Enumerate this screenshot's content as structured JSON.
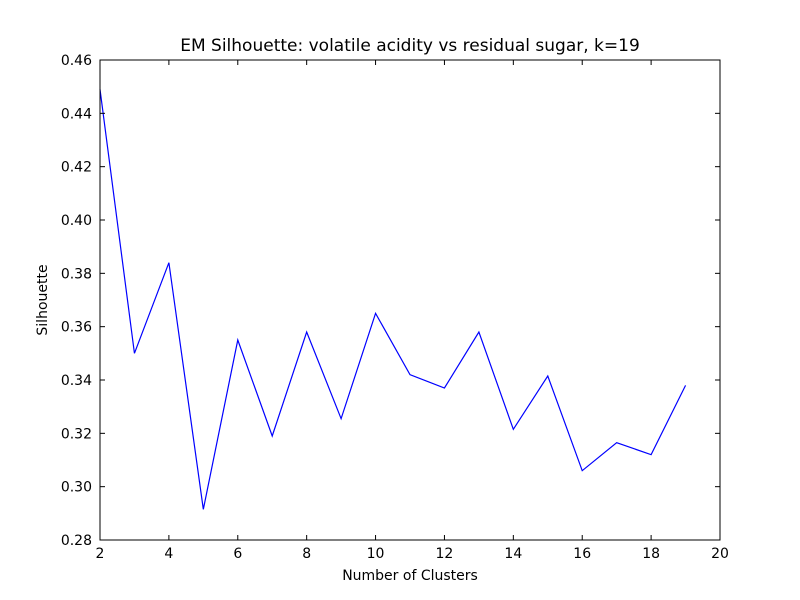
{
  "chart_data": {
    "type": "line",
    "title": "EM Silhouette: volatile acidity vs residual sugar, k=19",
    "xlabel": "Number of Clusters",
    "ylabel": "Silhouette",
    "xlim": [
      2,
      20
    ],
    "ylim": [
      0.28,
      0.46
    ],
    "xticks": [
      2,
      4,
      6,
      8,
      10,
      12,
      14,
      16,
      18,
      20
    ],
    "xtick_labels": [
      "2",
      "4",
      "6",
      "8",
      "10",
      "12",
      "14",
      "16",
      "18",
      "20"
    ],
    "yticks": [
      0.28,
      0.3,
      0.32,
      0.34,
      0.36,
      0.38,
      0.4,
      0.42,
      0.44,
      0.46
    ],
    "ytick_labels": [
      "0.28",
      "0.30",
      "0.32",
      "0.34",
      "0.36",
      "0.38",
      "0.40",
      "0.42",
      "0.44",
      "0.46"
    ],
    "grid": false,
    "series": [
      {
        "color": "#0000ff",
        "x": [
          2,
          3,
          4,
          5,
          6,
          7,
          8,
          9,
          10,
          11,
          12,
          13,
          14,
          15,
          16,
          17,
          18,
          19
        ],
        "y": [
          0.449,
          0.35,
          0.384,
          0.2915,
          0.355,
          0.319,
          0.358,
          0.3255,
          0.365,
          0.342,
          0.337,
          0.358,
          0.3215,
          0.3415,
          0.306,
          0.3165,
          0.312,
          0.338
        ]
      }
    ]
  }
}
